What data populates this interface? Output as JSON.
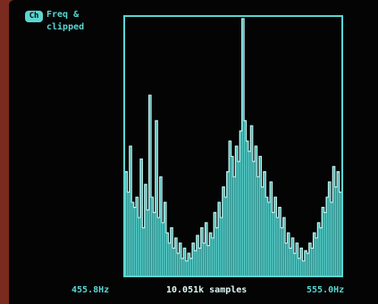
{
  "header": {
    "badge": "Ch",
    "title_line1": "Freq &",
    "title_line2": "clipped"
  },
  "footer": {
    "left": "455.8Hz",
    "center": "10.051k samples",
    "right": "555.0Hz"
  },
  "colors": {
    "trace": "#5ad6d2",
    "fill": "#3aa6a2",
    "background": "#040404",
    "bezel": "#7a2a1e"
  },
  "chart_data": {
    "type": "area",
    "title": "",
    "xlabel": "",
    "ylabel": "",
    "x_range_labels": [
      "455.8Hz",
      "555.0Hz"
    ],
    "values": [
      0.4,
      0.32,
      0.5,
      0.28,
      0.26,
      0.3,
      0.22,
      0.45,
      0.18,
      0.35,
      0.25,
      0.7,
      0.3,
      0.24,
      0.6,
      0.22,
      0.38,
      0.2,
      0.28,
      0.16,
      0.12,
      0.18,
      0.1,
      0.14,
      0.08,
      0.12,
      0.06,
      0.1,
      0.05,
      0.08,
      0.06,
      0.12,
      0.09,
      0.15,
      0.1,
      0.18,
      0.12,
      0.2,
      0.11,
      0.16,
      0.14,
      0.24,
      0.18,
      0.28,
      0.22,
      0.34,
      0.3,
      0.4,
      0.52,
      0.46,
      0.38,
      0.5,
      0.44,
      0.56,
      1.0,
      0.6,
      0.52,
      0.48,
      0.58,
      0.44,
      0.5,
      0.38,
      0.46,
      0.34,
      0.4,
      0.3,
      0.28,
      0.36,
      0.24,
      0.3,
      0.22,
      0.26,
      0.18,
      0.22,
      0.12,
      0.16,
      0.1,
      0.14,
      0.08,
      0.12,
      0.06,
      0.1,
      0.05,
      0.09,
      0.08,
      0.12,
      0.1,
      0.16,
      0.14,
      0.2,
      0.18,
      0.26,
      0.24,
      0.3,
      0.36,
      0.28,
      0.42,
      0.34,
      0.4,
      0.32
    ]
  }
}
